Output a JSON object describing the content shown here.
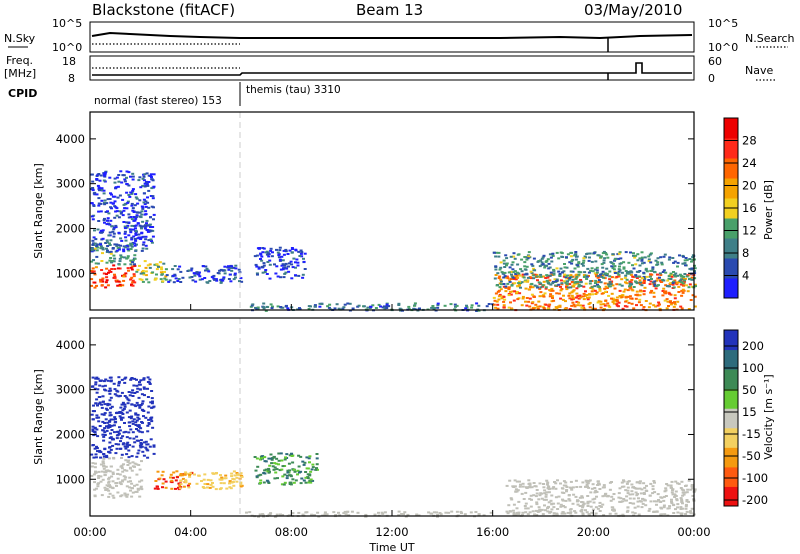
{
  "header": {
    "title": "Blackstone (fitACF)",
    "beam": "Beam 13",
    "date": "03/May/2010"
  },
  "status_panels": {
    "nsky_label": "N.Sky",
    "nsearch_label": "N.Search",
    "nsky_ticks": [
      "10^5",
      "10^0"
    ],
    "nsearch_ticks": [
      "10^5",
      "10^0"
    ],
    "freq_label_1": "Freq.",
    "freq_label_2": "[MHz]",
    "freq_ticks": [
      "18",
      "8"
    ],
    "nave_label": "Nave",
    "nave_ticks": [
      "60",
      "0"
    ],
    "cpid_label": "CPID",
    "cpid_1": "normal (fast stereo) 153",
    "cpid_2": "themis (tau) 3310"
  },
  "colors": {
    "power_scale": [
      "#1f1fff",
      "#2a4ab0",
      "#3f7f88",
      "#49a06a",
      "#f2d020",
      "#f5a300",
      "#ff6600",
      "#ff2a1a",
      "#ee0000"
    ],
    "velocity_scale": [
      "#2233bb",
      "#2d6b7c",
      "#3d8a55",
      "#66cc33",
      "#c8c8be",
      "#f3d060",
      "#f59a10",
      "#ff5a10",
      "#ee1111"
    ],
    "ground_scatter": "#c0c0b8"
  },
  "chart_data": [
    {
      "type": "heatmap",
      "name": "power",
      "ylabel": "Slant Range [km]",
      "y_ticks": [
        "1000",
        "2000",
        "3000",
        "4000"
      ],
      "ylim": [
        180,
        4600
      ],
      "colorbar_label": "Power [dB]",
      "colorbar_ticks": [
        "4",
        "8",
        "12",
        "16",
        "20",
        "24",
        "28"
      ],
      "colorbar_range": [
        0,
        32
      ],
      "regions": [
        {
          "t": [
            0.0,
            1.8
          ],
          "range": [
            700,
            1200
          ],
          "value": 26
        },
        {
          "t": [
            0.0,
            1.8
          ],
          "range": [
            1200,
            1700
          ],
          "value": 10
        },
        {
          "t": [
            0.0,
            2.5
          ],
          "range": [
            1500,
            3300
          ],
          "value": 4
        },
        {
          "t": [
            1.8,
            3.0
          ],
          "range": [
            800,
            1300
          ],
          "value": 14
        },
        {
          "t": [
            3.0,
            6.0
          ],
          "range": [
            800,
            1200
          ],
          "value": 5
        },
        {
          "t": [
            6.5,
            8.5
          ],
          "range": [
            900,
            1600
          ],
          "value": 4
        },
        {
          "t": [
            6.0,
            16.0
          ],
          "range": [
            180,
            350
          ],
          "value": 8
        },
        {
          "t": [
            16.0,
            24.0
          ],
          "range": [
            200,
            1000
          ],
          "value": 22
        },
        {
          "t": [
            16.0,
            24.0
          ],
          "range": [
            700,
            1500
          ],
          "value": 10
        }
      ]
    },
    {
      "type": "heatmap",
      "name": "velocity",
      "xlabel": "Time UT",
      "x_ticks": [
        "00:00",
        "04:00",
        "08:00",
        "12:00",
        "16:00",
        "20:00",
        "00:00"
      ],
      "xlim": [
        0,
        24
      ],
      "ylabel": "Slant Range [km]",
      "y_ticks": [
        "1000",
        "2000",
        "3000",
        "4000"
      ],
      "ylim": [
        180,
        4600
      ],
      "colorbar_label": "Velocity [m s⁻¹]",
      "colorbar_ticks": [
        "200",
        "100",
        "50",
        "15",
        "-15",
        "-50",
        "-100",
        "-200"
      ],
      "regions": [
        {
          "t": [
            0.0,
            2.0
          ],
          "range": [
            600,
            1500
          ],
          "value": 0,
          "ground_scatter": true
        },
        {
          "t": [
            0.0,
            2.5
          ],
          "range": [
            1500,
            3300
          ],
          "value": 150
        },
        {
          "t": [
            2.5,
            4.0
          ],
          "range": [
            800,
            1200
          ],
          "value": -200
        },
        {
          "t": [
            3.5,
            6.0
          ],
          "range": [
            800,
            1200
          ],
          "value": -80
        },
        {
          "t": [
            6.5,
            9.0
          ],
          "range": [
            900,
            1600
          ],
          "value": 30
        },
        {
          "t": [
            6.0,
            16.0
          ],
          "range": [
            180,
            300
          ],
          "value": 0,
          "ground_scatter": true
        },
        {
          "t": [
            16.5,
            24.0
          ],
          "range": [
            200,
            1000
          ],
          "value": 0,
          "ground_scatter": true
        }
      ]
    }
  ]
}
